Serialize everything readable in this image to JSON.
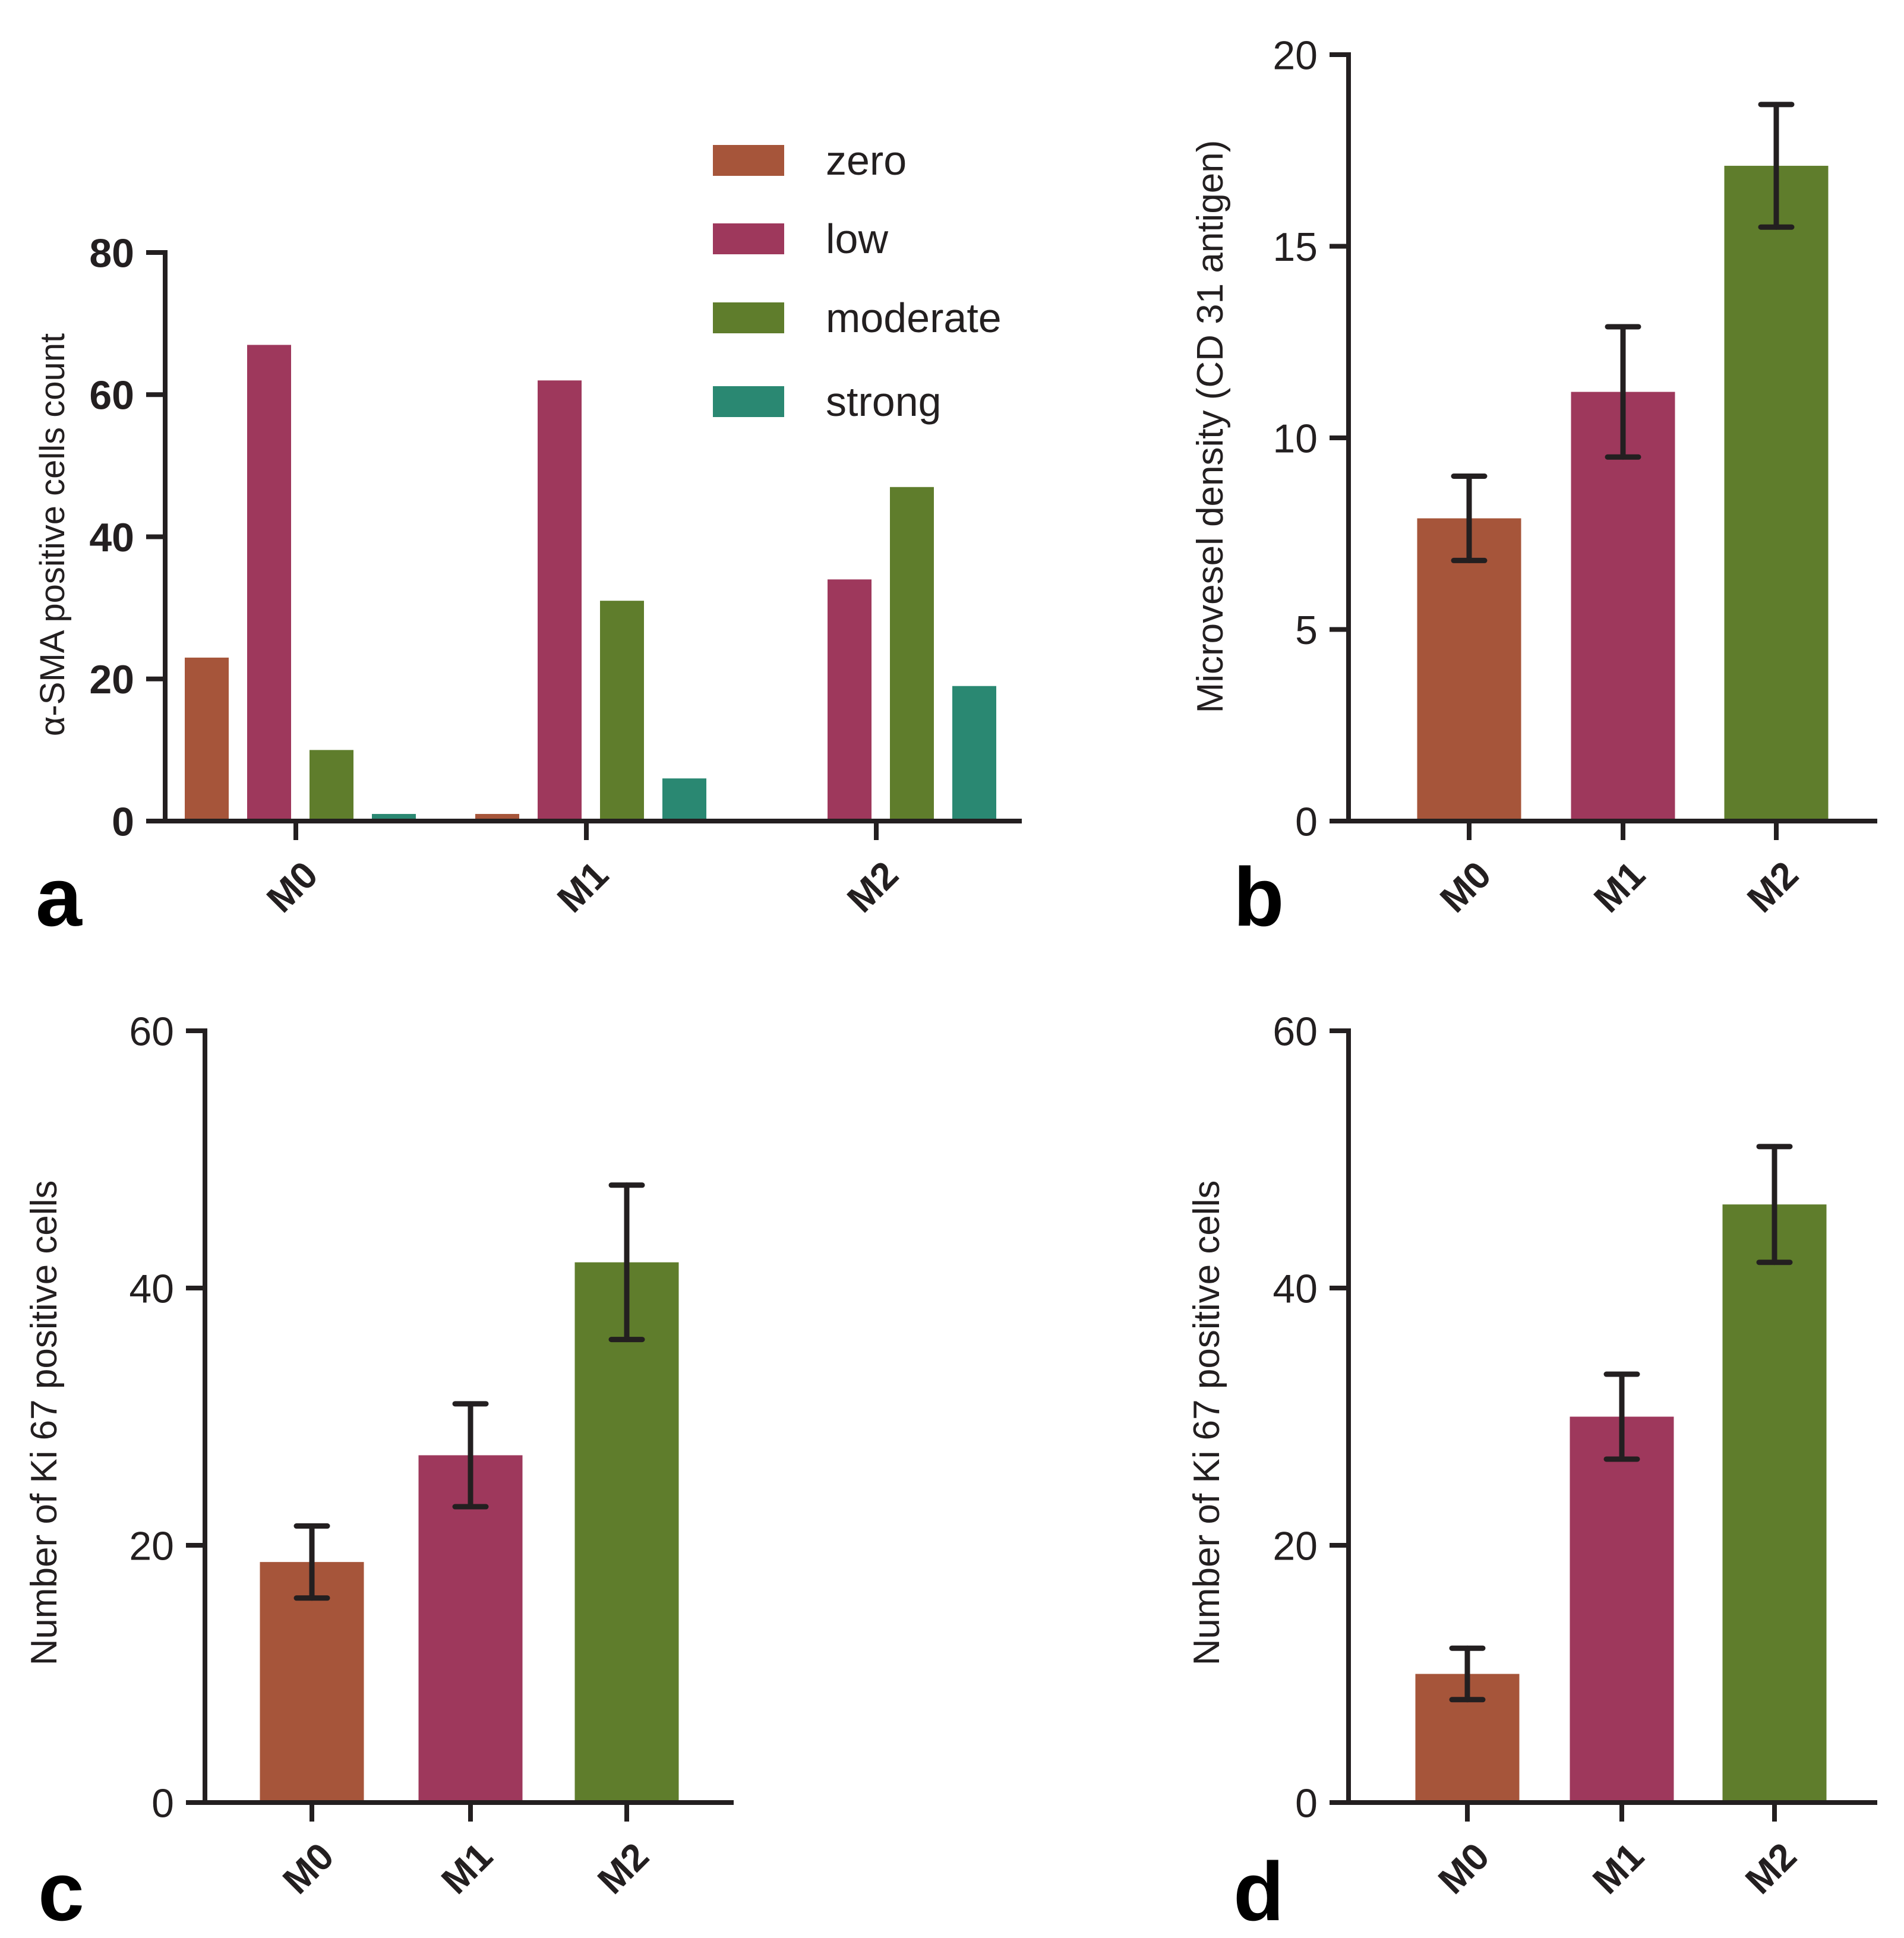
{
  "colors": {
    "zero": "#a6553a",
    "low": "#9e385c",
    "moderate": "#5f7d2c",
    "strong": "#2a8872",
    "axis": "#231f20"
  },
  "chart_data": [
    {
      "type": "bar",
      "panel": "a",
      "title": "",
      "xlabel": "",
      "ylabel": "α-SMA positive cells count",
      "ylim": [
        0,
        80
      ],
      "yticks": [
        "0",
        "20",
        "40",
        "60",
        "80"
      ],
      "categories": [
        "M0",
        "M1",
        "M2"
      ],
      "legend_position": "top-right",
      "series": [
        {
          "name": "zero",
          "color_key": "zero",
          "values": [
            23,
            1,
            0
          ]
        },
        {
          "name": "low",
          "color_key": "low",
          "values": [
            67,
            62,
            34
          ]
        },
        {
          "name": "moderate",
          "color_key": "moderate",
          "values": [
            10,
            31,
            47
          ]
        },
        {
          "name": "strong",
          "color_key": "strong",
          "values": [
            1,
            6,
            19
          ]
        }
      ]
    },
    {
      "type": "bar",
      "panel": "b",
      "title": "",
      "xlabel": "",
      "ylabel": "Microvesel density (CD 31 antigen)",
      "ylim": [
        0,
        20
      ],
      "yticks": [
        "0",
        "5",
        "10",
        "15",
        "20"
      ],
      "categories": [
        "M0",
        "M1",
        "M2"
      ],
      "values": [
        7.9,
        11.2,
        17.1
      ],
      "errors": [
        1.1,
        1.7,
        1.6
      ],
      "color_keys": [
        "zero",
        "low",
        "moderate"
      ]
    },
    {
      "type": "bar",
      "panel": "c",
      "title": "",
      "xlabel": "",
      "ylabel": "Number of Ki 67 positive cells",
      "ylim": [
        0,
        60
      ],
      "yticks": [
        "0",
        "20",
        "40",
        "60"
      ],
      "categories": [
        "M0",
        "M1",
        "M2"
      ],
      "values": [
        18.7,
        27,
        42
      ],
      "errors": [
        2.8,
        4,
        6
      ],
      "color_keys": [
        "zero",
        "low",
        "moderate"
      ]
    },
    {
      "type": "bar",
      "panel": "d",
      "title": "",
      "xlabel": "",
      "ylabel": "Number of Ki 67 positive cells",
      "ylim": [
        0,
        60
      ],
      "yticks": [
        "0",
        "20",
        "40",
        "60"
      ],
      "categories": [
        "M0",
        "M1",
        "M2"
      ],
      "values": [
        10,
        30,
        46.5
      ],
      "errors": [
        2,
        3.3,
        4.5
      ],
      "color_keys": [
        "zero",
        "low",
        "moderate"
      ]
    }
  ]
}
